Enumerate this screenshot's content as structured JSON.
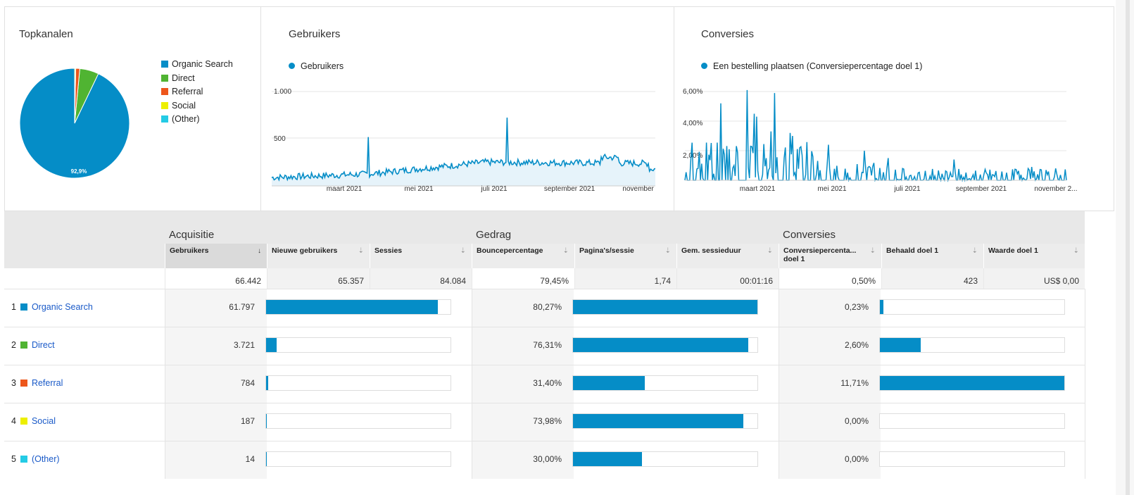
{
  "panels": {
    "topkanalen": {
      "title": "Topkanalen",
      "pie_label": "92,9%",
      "legend": [
        {
          "label": "Organic Search",
          "color": "#058dc7"
        },
        {
          "label": "Direct",
          "color": "#50b432"
        },
        {
          "label": "Referral",
          "color": "#ed561b"
        },
        {
          "label": "Social",
          "color": "#edef00"
        },
        {
          "label": "(Other)",
          "color": "#24cbe5"
        }
      ]
    },
    "gebruikers": {
      "title": "Gebruikers",
      "series_label": "Gebruikers",
      "y_ticks": [
        "1.000",
        "500"
      ],
      "x_ticks": [
        "maart 2021",
        "mei 2021",
        "juli 2021",
        "september 2021",
        "november 2..."
      ]
    },
    "conversies": {
      "title": "Conversies",
      "series_label": "Een bestelling plaatsen (Conversiepercentage doel 1)",
      "y_ticks": [
        "6,00%",
        "4,00%",
        "2,00%"
      ],
      "x_ticks": [
        "maart 2021",
        "mei 2021",
        "juli 2021",
        "september 2021",
        "november 2..."
      ]
    }
  },
  "chart_data": [
    {
      "type": "pie",
      "title": "Topkanalen",
      "categories": [
        "Organic Search",
        "Direct",
        "Referral",
        "Social",
        "(Other)"
      ],
      "values": [
        92.9,
        5.6,
        1.2,
        0.3,
        0.02
      ]
    },
    {
      "type": "area",
      "title": "Gebruikers",
      "ylim": [
        0,
        1000
      ]
    },
    {
      "type": "line",
      "title": "Conversies",
      "ylim": [
        0,
        6
      ]
    }
  ],
  "table": {
    "groups": [
      "Acquisitie",
      "Gedrag",
      "Conversies"
    ],
    "columns": [
      "Gebruikers",
      "Nieuwe gebruikers",
      "Sessies",
      "Bouncepercentage",
      "Pagina's/sessie",
      "Gem. sessieduur",
      "Conversiepercenta... doel 1",
      "Behaald doel 1",
      "Waarde doel 1"
    ],
    "sort_icon": "↓",
    "sort_idle": "⇣",
    "totals": [
      "66.442",
      "65.357",
      "84.084",
      "79,45%",
      "1,74",
      "00:01:16",
      "0,50%",
      "423",
      "US$ 0,00"
    ],
    "rows": [
      {
        "num": "1",
        "label": "Organic Search",
        "color": "#058dc7",
        "users": "61.797",
        "users_frac": 0.93,
        "bounce": "80,27%",
        "bounce_frac": 1.0,
        "conv": "0,23%",
        "conv_frac": 0.02
      },
      {
        "num": "2",
        "label": "Direct",
        "color": "#50b432",
        "users": "3.721",
        "users_frac": 0.056,
        "bounce": "76,31%",
        "bounce_frac": 0.951,
        "conv": "2,60%",
        "conv_frac": 0.222
      },
      {
        "num": "3",
        "label": "Referral",
        "color": "#ed561b",
        "users": "784",
        "users_frac": 0.013,
        "bounce": "31,40%",
        "bounce_frac": 0.391,
        "conv": "11,71%",
        "conv_frac": 1.0
      },
      {
        "num": "4",
        "label": "Social",
        "color": "#edef00",
        "users": "187",
        "users_frac": 0.003,
        "bounce": "73,98%",
        "bounce_frac": 0.922,
        "conv": "0,00%",
        "conv_frac": 0
      },
      {
        "num": "5",
        "label": "(Other)",
        "color": "#24cbe5",
        "users": "14",
        "users_frac": 0.0005,
        "bounce": "30,00%",
        "bounce_frac": 0.374,
        "conv": "0,00%",
        "conv_frac": 0
      }
    ]
  }
}
